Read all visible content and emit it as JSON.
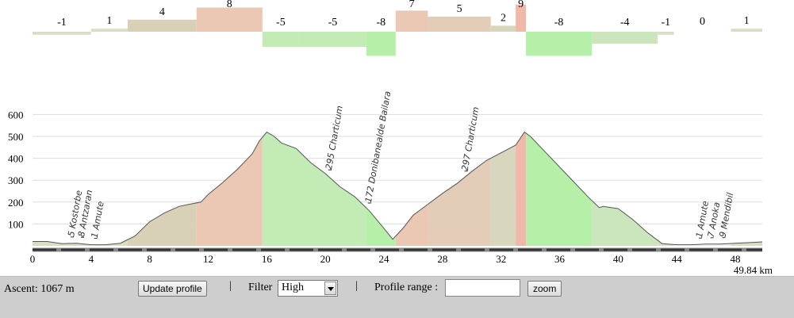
{
  "chart_data": {
    "type": "area",
    "x_unit": "km",
    "total_distance_label": "49.84 km",
    "x_ticks": [
      0,
      4,
      8,
      12,
      16,
      20,
      24,
      28,
      32,
      36,
      40,
      44,
      48
    ],
    "y_ticks": [
      100,
      200,
      300,
      400,
      500,
      600
    ],
    "ylim": [
      0,
      650
    ],
    "xlim": [
      0,
      49.84
    ],
    "profile": [
      [
        0,
        20
      ],
      [
        1,
        20
      ],
      [
        2,
        10
      ],
      [
        3,
        12
      ],
      [
        4,
        5
      ],
      [
        5,
        5
      ],
      [
        6,
        12
      ],
      [
        7,
        45
      ],
      [
        8,
        110
      ],
      [
        9,
        150
      ],
      [
        10,
        180
      ],
      [
        10.7,
        190
      ],
      [
        11.5,
        200
      ],
      [
        12,
        235
      ],
      [
        13,
        290
      ],
      [
        14,
        350
      ],
      [
        15,
        420
      ],
      [
        15.5,
        480
      ],
      [
        16,
        520
      ],
      [
        16.5,
        500
      ],
      [
        17,
        470
      ],
      [
        18,
        445
      ],
      [
        19,
        380
      ],
      [
        20,
        330
      ],
      [
        21,
        270
      ],
      [
        22,
        225
      ],
      [
        23,
        160
      ],
      [
        24,
        80
      ],
      [
        24.6,
        30
      ],
      [
        25.3,
        80
      ],
      [
        26,
        140
      ],
      [
        27,
        190
      ],
      [
        28,
        240
      ],
      [
        29,
        285
      ],
      [
        30,
        340
      ],
      [
        31,
        390
      ],
      [
        32,
        425
      ],
      [
        33,
        460
      ],
      [
        33.6,
        520
      ],
      [
        34,
        500
      ],
      [
        35,
        430
      ],
      [
        36,
        360
      ],
      [
        37,
        290
      ],
      [
        38,
        220
      ],
      [
        38.7,
        175
      ],
      [
        39,
        180
      ],
      [
        40,
        170
      ],
      [
        41,
        120
      ],
      [
        42,
        60
      ],
      [
        43,
        10
      ],
      [
        44,
        5
      ],
      [
        45,
        5
      ],
      [
        46,
        8
      ],
      [
        47,
        8
      ],
      [
        48,
        12
      ],
      [
        49,
        15
      ],
      [
        49.84,
        18
      ]
    ],
    "segments": [
      {
        "from": 0,
        "to": 4,
        "grade": "-1",
        "color": "#d6dfc4"
      },
      {
        "from": 4,
        "to": 6.5,
        "grade": "1",
        "color": "#d6dfc4"
      },
      {
        "from": 6.5,
        "to": 11.2,
        "grade": "4",
        "color": "#d8d1b8"
      },
      {
        "from": 11.2,
        "to": 15.7,
        "grade": "8",
        "color": "#eac8b4"
      },
      {
        "from": 15.7,
        "to": 18.2,
        "grade": "-5",
        "color": "#c3ebb6"
      },
      {
        "from": 18.2,
        "to": 22.8,
        "grade": "-5",
        "color": "#c3ebb6"
      },
      {
        "from": 22.8,
        "to": 24.8,
        "grade": "-8",
        "color": "#b6f0a8"
      },
      {
        "from": 24.8,
        "to": 27,
        "grade": "7",
        "color": "#eac8b4"
      },
      {
        "from": 27,
        "to": 31.3,
        "grade": "5",
        "color": "#e3ccb8"
      },
      {
        "from": 31.3,
        "to": 33,
        "grade": "2",
        "color": "#d8d6bc"
      },
      {
        "from": 33,
        "to": 33.7,
        "grade": "9",
        "color": "#f0b8a8"
      },
      {
        "from": 33.7,
        "to": 38.2,
        "grade": "-8",
        "color": "#b6f0a8"
      },
      {
        "from": 38.2,
        "to": 42.7,
        "grade": "-4",
        "color": "#cbe6bc"
      },
      {
        "from": 42.7,
        "to": 43.8,
        "grade": "-1",
        "color": "#d6dfc4"
      },
      {
        "from": 43.8,
        "to": 47.7,
        "grade": "0",
        "color": "#eeeeee"
      },
      {
        "from": 47.7,
        "to": 49.84,
        "grade": "1",
        "color": "#d6dfc4"
      }
    ],
    "waypoints": [
      {
        "km": 2.6,
        "label": "5 Kostorbe"
      },
      {
        "km": 3.3,
        "label": "8 Antzaran"
      },
      {
        "km": 4.2,
        "label": "1 Amute"
      },
      {
        "km": 20.2,
        "label": "295 Charticum"
      },
      {
        "km": 22.9,
        "label": "172 Donibanealde Bailara"
      },
      {
        "km": 29.5,
        "label": "297 Charticum"
      },
      {
        "km": 45.5,
        "label": "1 Amute"
      },
      {
        "km": 46.3,
        "label": "7 Anoka"
      },
      {
        "km": 47.1,
        "label": "9 Mendibil"
      }
    ]
  },
  "panel": {
    "ascent_label": "Ascent: 1067 m",
    "update_button": "Update profile",
    "separator": "|",
    "filter_label": "Filter",
    "filter_value": "High",
    "range_label": "Profile range :",
    "range_value": "",
    "zoom_button": "zoom"
  }
}
